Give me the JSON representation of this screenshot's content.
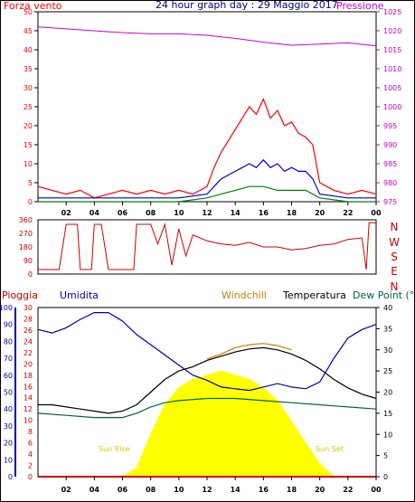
{
  "header": {
    "left_label": "Forza vento",
    "title": "24 hour graph day : 29 Maggio 2017",
    "right_label": "Pressione"
  },
  "colors": {
    "wind_gust": "#ff0000",
    "wind_avg": "#0000cc",
    "wind_min": "#008000",
    "pressure": "#cc00cc",
    "direction": "#cc0000",
    "rain": "#cc0000",
    "humidity": "#0000aa",
    "windchill": "#cc7a00",
    "temperature": "#000000",
    "dew_point": "#006633",
    "solar": "#ffff00"
  },
  "chart_data": [
    {
      "id": "wind",
      "type": "line",
      "x_ticks": [
        "02",
        "04",
        "06",
        "08",
        "10",
        "12",
        "14",
        "16",
        "18",
        "20",
        "22",
        "00"
      ],
      "y_ticks_left": [
        "0",
        "5",
        "10",
        "15",
        "20",
        "25",
        "30",
        "35",
        "40",
        "45",
        "50"
      ],
      "y_ticks_right": [
        "975",
        "980",
        "985",
        "990",
        "995",
        "1000",
        "1005",
        "1010",
        "1015",
        "1020",
        "1025"
      ],
      "ylim": [
        0,
        50
      ],
      "ylim_right": [
        975,
        1025
      ],
      "series": [
        {
          "key": "gust",
          "x": [
            0,
            1,
            2,
            3,
            4,
            5,
            6,
            7,
            8,
            9,
            10,
            11,
            12,
            12.5,
            13,
            13.5,
            14,
            14.5,
            15,
            15.5,
            16,
            16.5,
            17,
            17.5,
            18,
            18.5,
            19,
            19.5,
            20,
            21,
            22,
            23,
            24
          ],
          "values": [
            4,
            3,
            2,
            3,
            1,
            2,
            3,
            2,
            3,
            2,
            3,
            2,
            4,
            9,
            13,
            16,
            19,
            22,
            25,
            23,
            27,
            22,
            24,
            20,
            21,
            18,
            17,
            15,
            5,
            3,
            2,
            3,
            2
          ]
        },
        {
          "key": "avg",
          "x": [
            0,
            2,
            4,
            6,
            8,
            10,
            12,
            12.5,
            13,
            13.5,
            14,
            14.5,
            15,
            15.5,
            16,
            16.5,
            17,
            17.5,
            18,
            18.5,
            19,
            19.5,
            20,
            22,
            24
          ],
          "values": [
            1,
            1,
            1,
            1,
            1,
            1,
            2,
            4,
            6,
            7,
            8,
            9,
            10,
            9,
            11,
            9,
            10,
            8,
            9,
            8,
            8,
            6,
            2,
            1,
            1
          ]
        },
        {
          "key": "min",
          "x": [
            0,
            2,
            4,
            6,
            8,
            10,
            12,
            13,
            14,
            15,
            16,
            17,
            18,
            19,
            20,
            22,
            24
          ],
          "values": [
            0,
            0,
            0,
            0,
            0,
            0,
            1,
            2,
            3,
            4,
            4,
            3,
            3,
            3,
            1,
            0,
            0
          ]
        },
        {
          "key": "pressure",
          "x": [
            0,
            2,
            4,
            6,
            8,
            10,
            12,
            14,
            16,
            18,
            20,
            22,
            24
          ],
          "values": [
            1021,
            1020.5,
            1020,
            1019.5,
            1019.2,
            1019.2,
            1018.8,
            1018,
            1017,
            1016.2,
            1016.5,
            1016.8,
            1016
          ]
        }
      ]
    },
    {
      "id": "direction",
      "type": "line",
      "x_ticks": [
        "02",
        "04",
        "06",
        "08",
        "10",
        "12",
        "14",
        "16",
        "18",
        "20",
        "22",
        "00"
      ],
      "y_ticks_left": [
        "0",
        "90",
        "180",
        "270",
        "360"
      ],
      "y_ticks_right": [
        "N",
        "W",
        "S",
        "E",
        "N"
      ],
      "ylim": [
        0,
        360
      ],
      "series": [
        {
          "key": "direction",
          "x": [
            0,
            1.5,
            2,
            2.8,
            3,
            3.8,
            4,
            4.5,
            5,
            5.5,
            6,
            6.8,
            7,
            8,
            8.5,
            9,
            9.5,
            10,
            10.5,
            11,
            12,
            13,
            14,
            15,
            16,
            17,
            18,
            19,
            20,
            21,
            22,
            23,
            23.3,
            23.5,
            24
          ],
          "values": [
            30,
            30,
            330,
            330,
            30,
            30,
            330,
            330,
            30,
            30,
            30,
            30,
            330,
            330,
            200,
            330,
            60,
            300,
            120,
            260,
            220,
            200,
            190,
            210,
            180,
            180,
            160,
            170,
            190,
            200,
            230,
            240,
            30,
            340,
            340
          ]
        }
      ]
    },
    {
      "id": "weather",
      "type": "area",
      "x_ticks": [
        "02",
        "04",
        "06",
        "08",
        "10",
        "12",
        "14",
        "16",
        "18",
        "20",
        "22",
        "00"
      ],
      "y_ticks_humidity": [
        "0",
        "10",
        "20",
        "30",
        "40",
        "50",
        "60",
        "70",
        "80",
        "90",
        "100"
      ],
      "y_ticks_rain": [
        "0",
        "2",
        "4",
        "6",
        "8",
        "10",
        "12",
        "14",
        "16",
        "18",
        "20",
        "22",
        "24",
        "26",
        "28",
        "30"
      ],
      "y_ticks_temp": [
        "0",
        "5",
        "10",
        "15",
        "20",
        "25",
        "30",
        "35",
        "40"
      ],
      "labels": {
        "rain": "Pioggia",
        "humidity": "Umidita",
        "windchill": "Windchill",
        "temperature": "Temperatura",
        "dew_point": "Dew Point (°C"
      },
      "sun_rise": "Sun Rise",
      "sun_set": "Sun Set",
      "series": [
        {
          "key": "humidity",
          "x": [
            0,
            1,
            2,
            3,
            4,
            5,
            6,
            7,
            8,
            9,
            10,
            11,
            12,
            13,
            14,
            15,
            16,
            17,
            18,
            19,
            20,
            21,
            22,
            23,
            24
          ],
          "values": [
            87,
            85,
            88,
            93,
            97,
            97,
            92,
            84,
            78,
            72,
            66,
            60,
            57,
            53,
            52,
            51,
            53,
            55,
            53,
            52,
            56,
            70,
            82,
            87,
            90
          ]
        },
        {
          "key": "temperature",
          "x": [
            0,
            1,
            2,
            3,
            4,
            5,
            6,
            7,
            8,
            9,
            10,
            11,
            12,
            13,
            14,
            15,
            16,
            17,
            18,
            19,
            20,
            21,
            22,
            23,
            24
          ],
          "values": [
            17,
            17,
            16.5,
            16,
            15.5,
            15,
            15.5,
            17,
            20,
            23,
            25,
            26,
            27.5,
            28.5,
            29.5,
            30.2,
            30.5,
            30,
            29,
            27.5,
            25.5,
            23,
            21,
            19.5,
            18.5
          ]
        },
        {
          "key": "windchill",
          "x": [
            12,
            13,
            14,
            15,
            16,
            17,
            18
          ],
          "values": [
            27.8,
            29,
            30.5,
            31.2,
            31.5,
            31,
            30
          ]
        },
        {
          "key": "dew_point",
          "x": [
            0,
            2,
            4,
            6,
            7,
            8,
            9,
            10,
            12,
            14,
            16,
            18,
            20,
            22,
            24
          ],
          "values": [
            15,
            14.5,
            14,
            14,
            15,
            16.5,
            17.5,
            18,
            18.5,
            18.5,
            18,
            17.5,
            17,
            16.5,
            16
          ]
        },
        {
          "key": "solar",
          "x": [
            6,
            7,
            8,
            9,
            10,
            11,
            12,
            13,
            14,
            15,
            16,
            17,
            18,
            19,
            20,
            21
          ],
          "values": [
            0,
            2,
            10,
            17,
            21,
            23,
            24,
            25,
            24,
            23,
            21,
            18,
            13,
            8,
            3,
            0
          ]
        },
        {
          "key": "rain",
          "x": [
            0,
            24
          ],
          "values": [
            0,
            0
          ]
        }
      ]
    }
  ]
}
